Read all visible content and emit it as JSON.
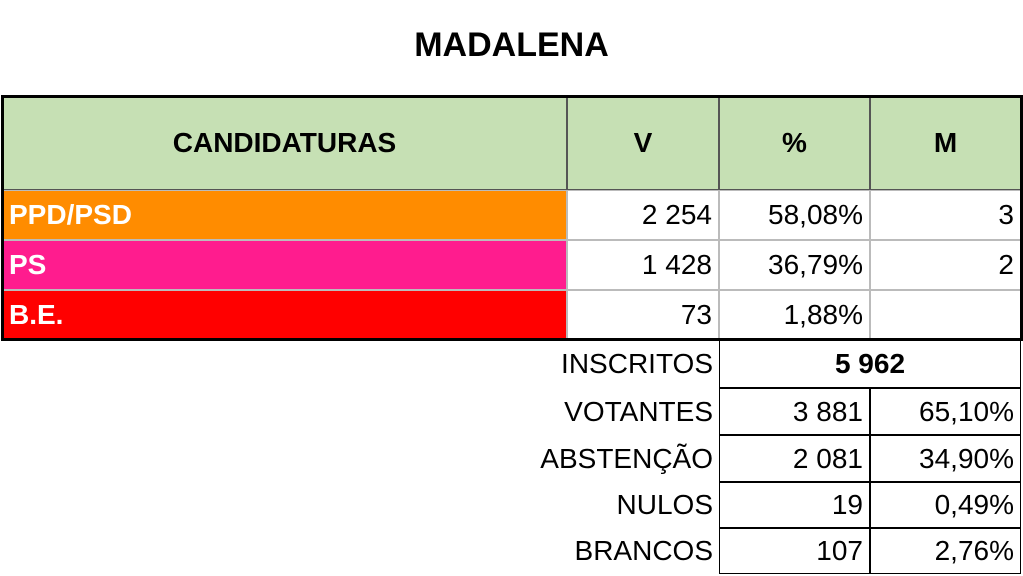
{
  "title": "MADALENA",
  "table": {
    "header": [
      "CANDIDATURAS",
      "V",
      "%",
      "M"
    ],
    "rows": [
      [
        "PPD/PSD",
        "2 254",
        "58,08%",
        "3"
      ],
      [
        "PS",
        "1 428",
        "36,79%",
        "2"
      ],
      [
        "B.E.",
        "73",
        "1,88%"
      ]
    ]
  },
  "summary": [
    [
      "INSCRITOS",
      "5 962"
    ],
    [
      "VOTANTES",
      "3 881",
      "65,10%"
    ],
    [
      "ABSTENÇÃO",
      "2 081",
      "34,90%"
    ],
    [
      "NULOS",
      "19",
      "0,49%"
    ],
    [
      "BRANCOS",
      "107",
      "2,76%"
    ]
  ]
}
